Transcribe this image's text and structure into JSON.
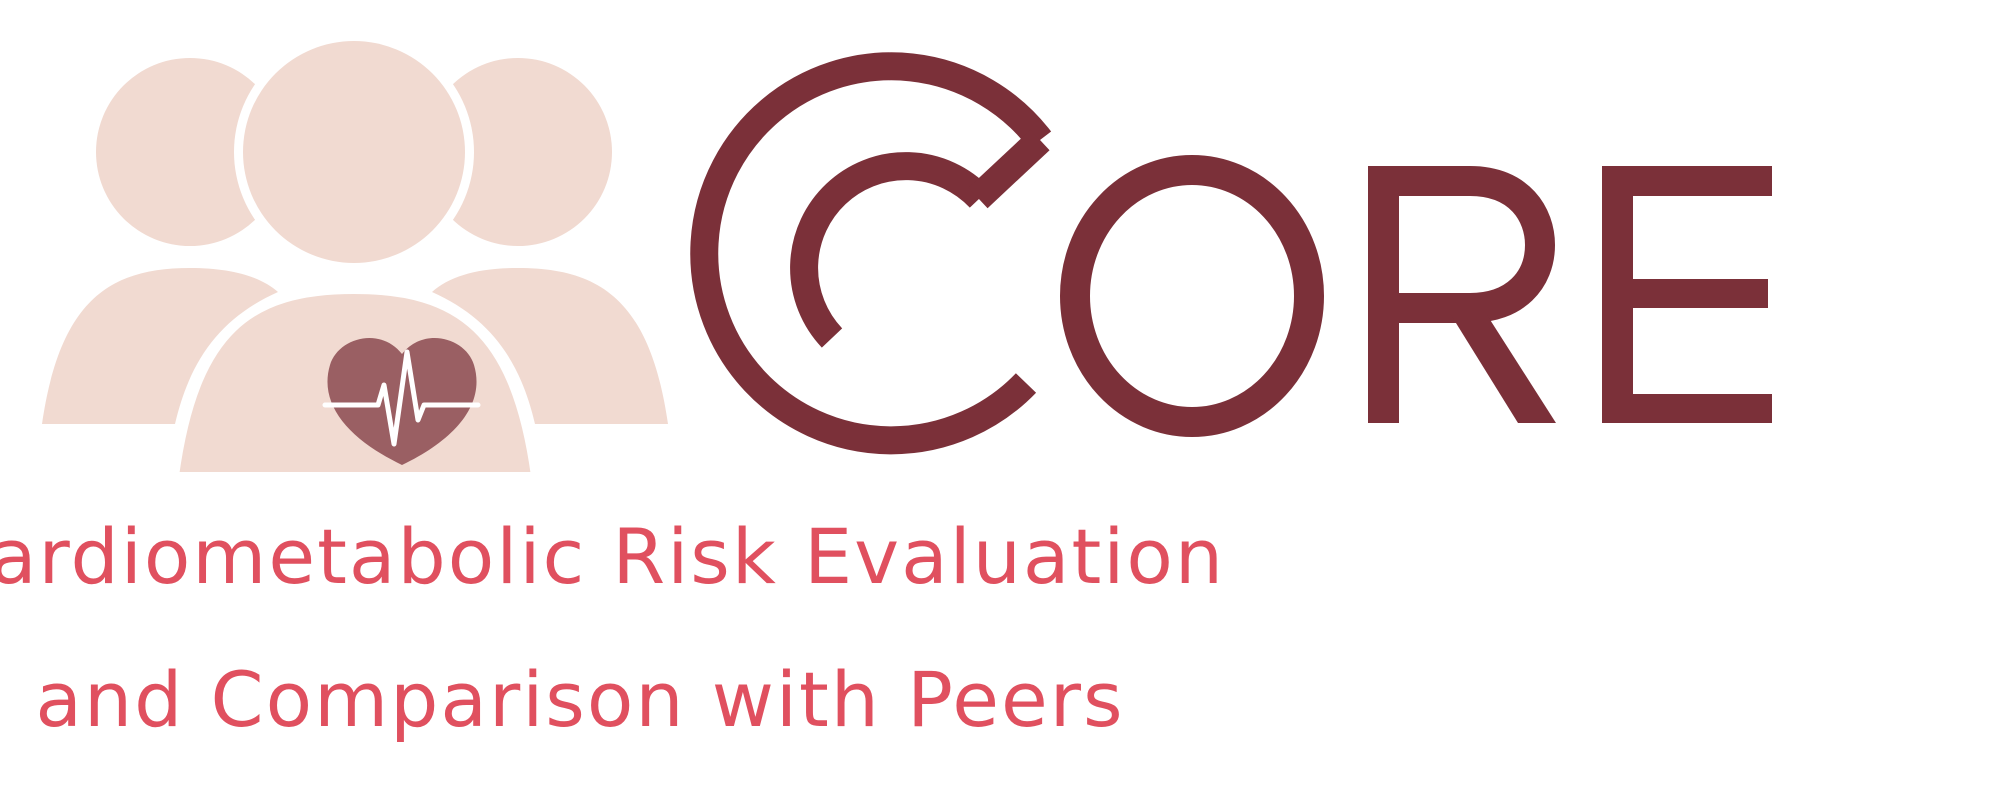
{
  "brand": {
    "wordmark_letters": [
      "C",
      "O",
      "R",
      "E"
    ],
    "tagline_line_1": "Cardiometabolic Risk Evaluation",
    "tagline_line_2": "and Comparison with Peers"
  },
  "icons": {
    "people_group": "people-group-icon",
    "heart": "heart-icon",
    "heartbeat_line": "heartbeat-line-icon"
  },
  "colors": {
    "people_fill": "#f1dad1",
    "heart_fill": "#9a5f63",
    "wordmark": "#7b3039",
    "tagline": "#e0505f",
    "background": "#ffffff"
  }
}
